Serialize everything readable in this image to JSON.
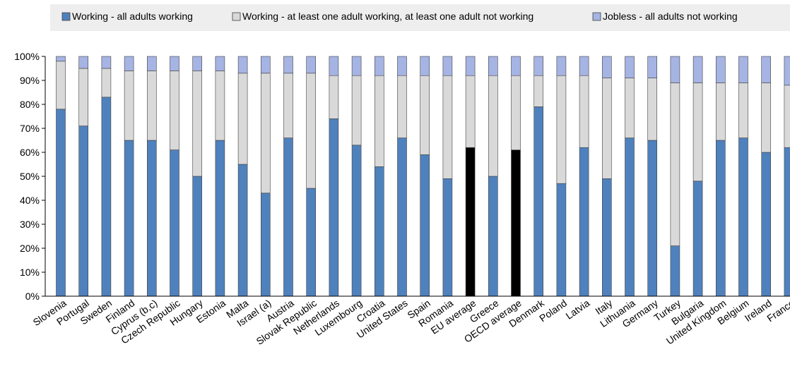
{
  "chart_data": {
    "type": "bar",
    "stacked": true,
    "percent_stacked": true,
    "categories": [
      "Slovenia",
      "Portugal",
      "Sweden",
      "Finland",
      "Cyprus (b,c)",
      "Czech Republic",
      "Hungary",
      "Estonia",
      "Malta",
      "Israel (a)",
      "Austria",
      "Slovak Republic",
      "Netherlands",
      "Luxembourg",
      "Croatia",
      "United States",
      "Spain",
      "Romania",
      "EU average",
      "Greece",
      "OECD average",
      "Denmark",
      "Poland",
      "Latvia",
      "Italy",
      "Lithuania",
      "Germany",
      "Turkey",
      "Bulgaria",
      "United Kingdom",
      "Belgium",
      "Ireland",
      "France"
    ],
    "series": [
      {
        "name": "Working - all adults working",
        "color": "#4f81bd",
        "values": [
          78,
          71,
          83,
          65,
          65,
          61,
          50,
          65,
          55,
          43,
          66,
          45,
          74,
          63,
          54,
          66,
          59,
          49,
          62,
          50,
          61,
          79,
          47,
          62,
          49,
          66,
          65,
          21,
          48,
          65,
          66,
          60,
          62
        ]
      },
      {
        "name": "Working - at least one adult working, at least one adult not working",
        "color": "#d9d9d9",
        "values": [
          20,
          24,
          12,
          29,
          29,
          33,
          44,
          29,
          38,
          50,
          27,
          48,
          18,
          29,
          38,
          26,
          33,
          43,
          30,
          42,
          31,
          13,
          45,
          30,
          42,
          25,
          26,
          68,
          41,
          24,
          23,
          29,
          26
        ]
      },
      {
        "name": "Jobless - all adults not working",
        "color": "#a6b4e4",
        "values": [
          2,
          5,
          5,
          6,
          6,
          6,
          6,
          6,
          7,
          7,
          7,
          7,
          8,
          8,
          8,
          8,
          8,
          8,
          8,
          8,
          8,
          8,
          8,
          8,
          9,
          9,
          9,
          11,
          11,
          11,
          11,
          11,
          12
        ]
      }
    ],
    "highlight": {
      "categories": [
        "EU average",
        "OECD average"
      ],
      "color": "#000000"
    },
    "y_ticks": [
      "0%",
      "10%",
      "20%",
      "30%",
      "40%",
      "50%",
      "60%",
      "70%",
      "80%",
      "90%",
      "100%"
    ],
    "ylim": [
      0,
      100
    ],
    "grid": false,
    "legend_position": "top"
  }
}
